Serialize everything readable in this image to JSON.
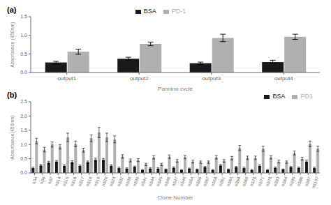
{
  "chart_data": [
    {
      "type": "bar",
      "title": "(a)",
      "categories": [
        "output1",
        "output2",
        "output3",
        "output4"
      ],
      "series": [
        {
          "name": "BSA",
          "color": "#1a1a1a",
          "values": [
            0.27,
            0.37,
            0.25,
            0.28
          ],
          "errors": [
            0.03,
            0.04,
            0.03,
            0.05
          ]
        },
        {
          "name": "PD-1",
          "color": "#b0b0b0",
          "values": [
            0.56,
            0.77,
            0.93,
            0.96
          ],
          "errors": [
            0.07,
            0.05,
            0.1,
            0.07
          ]
        }
      ],
      "x_label": "Panning cycle",
      "y_label": "Absorbance (450nm)",
      "ylim": [
        0.0,
        1.5
      ],
      "yticks": [
        {
          "value": 0.0,
          "label": "0.0"
        },
        0.5,
        {
          "value": 1.0,
          "label": "1.0"
        },
        1.5
      ],
      "legend": "upper center",
      "grid": false
    },
    {
      "type": "bar",
      "title": "(b)",
      "categories": [
        "hS4",
        "hS6",
        "hS7",
        "hS14",
        "hS15",
        "hS16",
        "hS17",
        "hS18",
        "hS19",
        "hS20",
        "hS23",
        "hS32",
        "hS38",
        "hS39",
        "hS41",
        "hS44",
        "hS45",
        "hS46",
        "hS47",
        "hS48",
        "hS54",
        "hS56",
        "hS57",
        "hS58",
        "hS61",
        "hS64",
        "hS68",
        "hS69",
        "hS70",
        "hS71",
        "hS78",
        "hS83",
        "hS84",
        "hS85",
        "hS86",
        "hS97",
        "hS107"
      ],
      "series": [
        {
          "name": "BSA",
          "color": "#1a1a1a",
          "values": [
            0.17,
            0.26,
            0.36,
            0.4,
            0.25,
            0.38,
            0.25,
            0.38,
            0.46,
            0.46,
            0.25,
            0.17,
            0.15,
            0.21,
            0.1,
            0.15,
            0.15,
            0.12,
            0.18,
            0.1,
            0.15,
            0.12,
            0.2,
            0.1,
            0.26,
            0.12,
            0.2,
            0.17,
            0.1,
            0.25,
            0.1,
            0.18,
            0.12,
            0.2,
            0.18,
            0.4,
            0.17
          ],
          "errors": [
            0.03,
            0.04,
            0.05,
            0.04,
            0.04,
            0.05,
            0.03,
            0.04,
            0.06,
            0.05,
            0.04,
            0.03,
            0.03,
            0.03,
            0.02,
            0.03,
            0.03,
            0.02,
            0.03,
            0.02,
            0.02,
            0.02,
            0.03,
            0.02,
            0.04,
            0.02,
            0.03,
            0.03,
            0.02,
            0.04,
            0.02,
            0.03,
            0.02,
            0.03,
            0.03,
            0.05,
            0.03
          ]
        },
        {
          "name": "PD1",
          "color": "#b0b0b0",
          "values": [
            1.12,
            0.82,
            1.0,
            0.92,
            1.25,
            1.02,
            0.8,
            1.22,
            1.42,
            1.25,
            1.18,
            0.58,
            0.44,
            0.45,
            0.3,
            0.55,
            0.3,
            0.57,
            0.42,
            0.56,
            0.4,
            0.38,
            0.38,
            0.55,
            0.42,
            0.52,
            0.88,
            0.53,
            0.53,
            0.85,
            0.55,
            0.4,
            0.38,
            0.7,
            0.5,
            1.02,
            0.85
          ],
          "errors": [
            0.1,
            0.08,
            0.09,
            0.08,
            0.15,
            0.1,
            0.07,
            0.12,
            0.18,
            0.15,
            0.12,
            0.06,
            0.05,
            0.05,
            0.04,
            0.06,
            0.04,
            0.06,
            0.05,
            0.06,
            0.05,
            0.04,
            0.04,
            0.06,
            0.05,
            0.06,
            0.09,
            0.06,
            0.06,
            0.09,
            0.06,
            0.05,
            0.04,
            0.07,
            0.05,
            0.1,
            0.09
          ]
        }
      ],
      "x_label": "Clone Number",
      "y_label": "Absorbance(450nm)",
      "ylim": [
        0.0,
        2.5
      ],
      "yticks": [
        {
          "value": 0.0,
          "label": "0.0"
        },
        0.5,
        {
          "value": 1.0,
          "label": "1.0"
        },
        1.5,
        {
          "value": 2.0,
          "label": "2.0"
        },
        2.5
      ],
      "legend": "upper right",
      "grid": false
    }
  ]
}
